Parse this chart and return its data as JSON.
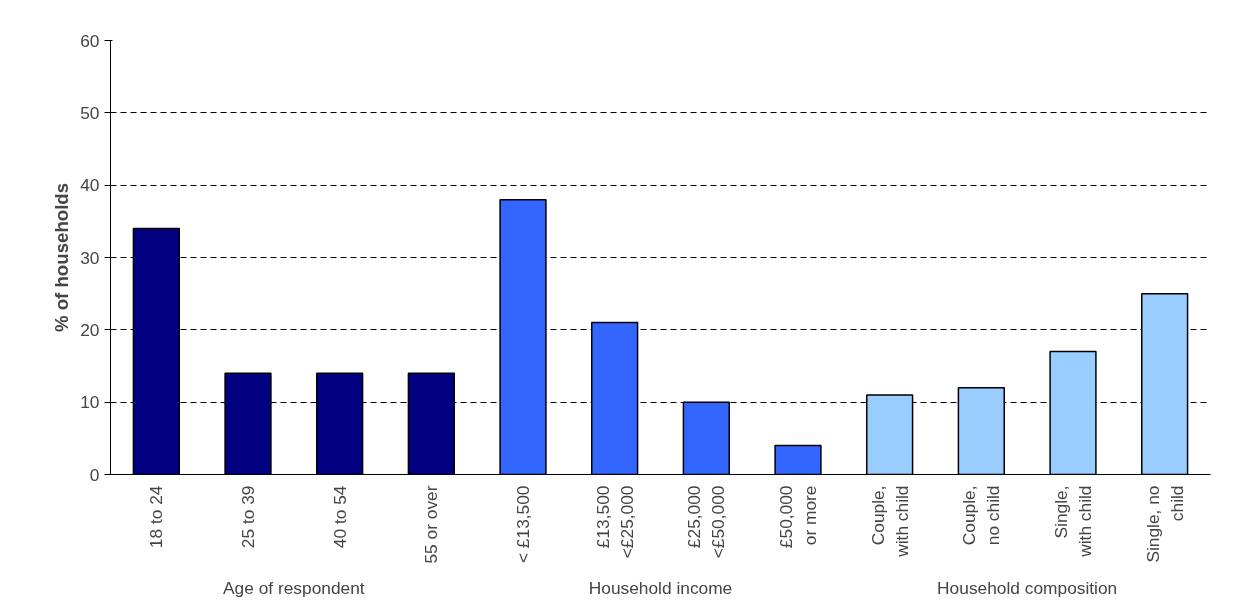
{
  "chart_data": {
    "type": "bar",
    "ylabel": "% of households",
    "categories": [
      "18 to 24",
      "25 to 39",
      "40 to 54",
      "55 or over",
      "< £13,500",
      "£13,500\n<£25,000",
      "£25,000\n<£50,000",
      "£50,000\nor more",
      "Couple,\nwith child",
      "Couple,\nno child",
      "Single,\nwith child",
      "Single, no\nchild"
    ],
    "values": [
      34,
      14,
      14,
      14,
      38,
      21,
      10,
      4,
      11,
      12,
      17,
      25
    ],
    "colors": [
      "#000080",
      "#000080",
      "#000080",
      "#000080",
      "#3366ff",
      "#3366ff",
      "#3366ff",
      "#3366ff",
      "#99ccff",
      "#99ccff",
      "#99ccff",
      "#99ccff"
    ],
    "ylim": [
      0,
      60
    ],
    "yticks": [
      0,
      10,
      20,
      30,
      40,
      50,
      60
    ],
    "grid": "y",
    "annotations": [
      "Age of respondent",
      "Household income",
      "Household composition"
    ]
  }
}
